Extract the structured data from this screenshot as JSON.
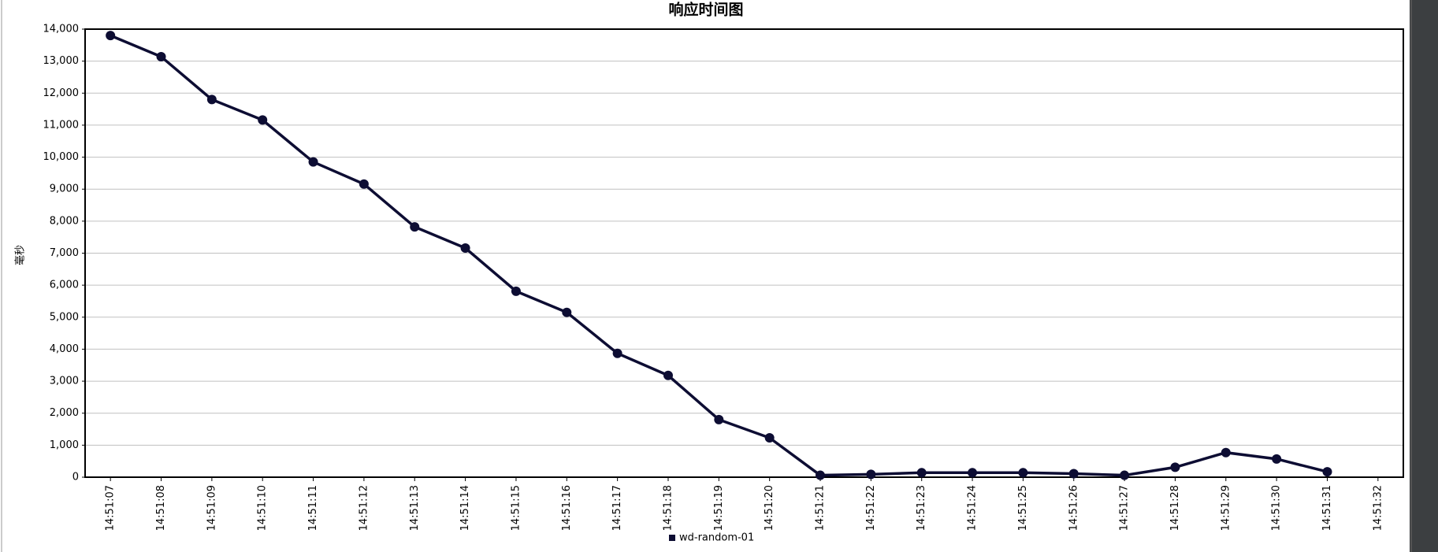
{
  "chart_data": {
    "type": "line",
    "title": "响应时间图",
    "y_label": "毫秒",
    "categories": [
      "14:51:07",
      "14:51:08",
      "14:51:09",
      "14:51:10",
      "14:51:11",
      "14:51:12",
      "14:51:13",
      "14:51:14",
      "14:51:15",
      "14:51:16",
      "14:51:17",
      "14:51:18",
      "14:51:19",
      "14:51:20",
      "14:51:21",
      "14:51:22",
      "14:51:23",
      "14:51:24",
      "14:51:25",
      "14:51:26",
      "14:51:27",
      "14:51:28",
      "14:51:29",
      "14:51:30",
      "14:51:31",
      "14:51:32"
    ],
    "series": [
      {
        "name": "wd-random-01",
        "color": "#0d0d33",
        "values": [
          13800,
          13140,
          11800,
          11160,
          9850,
          9160,
          7820,
          7160,
          5810,
          5150,
          3870,
          3180,
          1800,
          1230,
          60,
          90,
          140,
          140,
          140,
          110,
          60,
          310,
          770,
          570,
          170,
          null
        ]
      }
    ],
    "ylim": [
      0,
      14000
    ],
    "yticks": [
      0,
      {
        "value": 1000,
        "label": "1,000"
      },
      {
        "value": 2000,
        "label": "2,000"
      },
      {
        "value": 3000,
        "label": "3,000"
      },
      {
        "value": 4000,
        "label": "4,000"
      },
      {
        "value": 5000,
        "label": "5,000"
      },
      {
        "value": 6000,
        "label": "6,000"
      },
      {
        "value": 7000,
        "label": "7,000"
      },
      {
        "value": 8000,
        "label": "8,000"
      },
      {
        "value": 9000,
        "label": "9,000"
      },
      {
        "value": 10000,
        "label": "10,000"
      },
      {
        "value": 11000,
        "label": "11,000"
      },
      {
        "value": 12000,
        "label": "12,000"
      },
      {
        "value": 13000,
        "label": "13,000"
      },
      {
        "value": 14000,
        "label": "14,000"
      }
    ],
    "grid": true,
    "legend": "bottom"
  }
}
